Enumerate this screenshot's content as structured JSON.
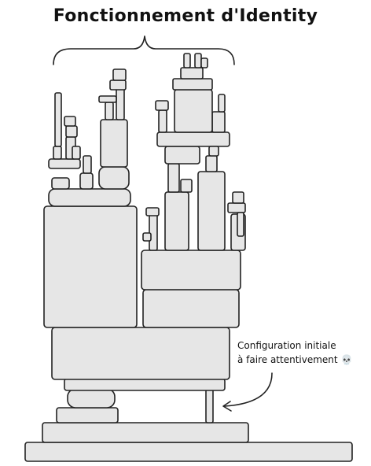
{
  "title": "Fonctionnement d'Identity",
  "annotation": {
    "line1": "Configuration initiale",
    "line2": "à faire attentivement",
    "icon": "skull-icon"
  },
  "colors": {
    "block_fill": "#e6e6e6",
    "ink": "#222222",
    "background": "#ffffff"
  }
}
